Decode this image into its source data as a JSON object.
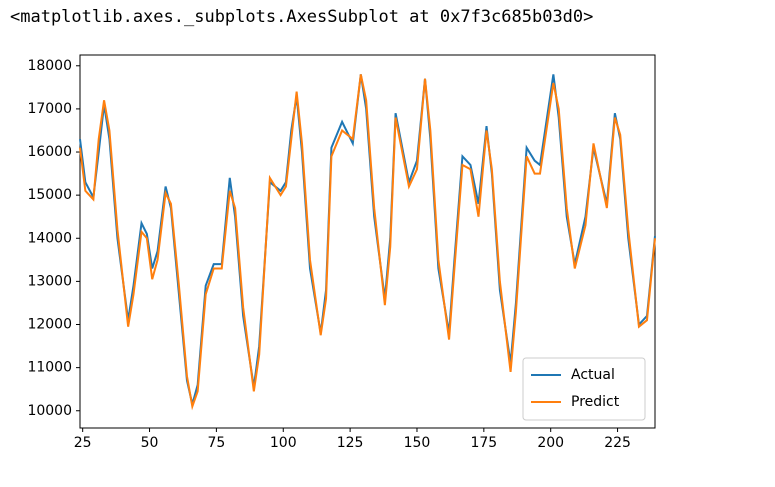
{
  "output_text": "<matplotlib.axes._subplots.AxesSubplot at 0x7f3c685b03d0>",
  "chart_data": {
    "type": "line",
    "x": [
      24,
      26,
      29,
      31,
      33,
      35,
      38,
      42,
      44,
      47,
      49,
      51,
      53,
      56,
      58,
      61,
      64,
      66,
      68,
      71,
      74,
      77,
      80,
      82,
      85,
      89,
      91,
      95,
      99,
      101,
      103,
      105,
      107,
      110,
      114,
      116,
      118,
      122,
      126,
      129,
      131,
      134,
      138,
      140,
      142,
      147,
      150,
      153,
      155,
      158,
      162,
      164,
      167,
      170,
      173,
      176,
      178,
      181,
      185,
      187,
      191,
      194,
      196,
      201,
      203,
      206,
      209,
      213,
      216,
      221,
      224,
      226,
      229,
      233,
      236,
      239
    ],
    "series": [
      {
        "name": "Actual",
        "color": "#1f77b4",
        "values": [
          16300,
          15300,
          14950,
          16000,
          17100,
          16300,
          14000,
          12100,
          12900,
          14350,
          14100,
          13300,
          13700,
          15200,
          14700,
          12700,
          10700,
          10150,
          10600,
          12900,
          13400,
          13400,
          15400,
          14500,
          12200,
          10550,
          11500,
          15300,
          15100,
          15300,
          16500,
          17300,
          16000,
          13300,
          11800,
          12800,
          16100,
          16700,
          16200,
          17800,
          17000,
          14500,
          12600,
          14000,
          16900,
          15300,
          15800,
          17700,
          16300,
          13300,
          11800,
          13500,
          15900,
          15700,
          14800,
          16600,
          15500,
          12800,
          11100,
          12500,
          16100,
          15800,
          15700,
          17800,
          16800,
          14500,
          13400,
          14500,
          16100,
          14800,
          16900,
          16300,
          14000,
          12000,
          12200,
          14050
        ]
      },
      {
        "name": "Predict",
        "color": "#ff7f0e",
        "values": [
          16100,
          15100,
          14900,
          16300,
          17200,
          16500,
          14200,
          11950,
          12700,
          14150,
          14000,
          13050,
          13500,
          15050,
          14800,
          12900,
          10800,
          10100,
          10450,
          12700,
          13300,
          13300,
          15100,
          14700,
          12400,
          10450,
          11300,
          15400,
          15000,
          15200,
          16300,
          17400,
          16200,
          13500,
          11750,
          12600,
          15900,
          16500,
          16300,
          17800,
          17200,
          14700,
          12450,
          13800,
          16800,
          15200,
          15600,
          17700,
          16500,
          13500,
          11650,
          13300,
          15700,
          15600,
          14500,
          16500,
          15600,
          13000,
          10900,
          12300,
          15900,
          15500,
          15500,
          17600,
          17000,
          14700,
          13300,
          14300,
          16200,
          14700,
          16800,
          16400,
          14200,
          11950,
          12100,
          14000
        ]
      }
    ],
    "xlim": [
      24,
      239
    ],
    "xticks": [
      25,
      50,
      75,
      100,
      125,
      150,
      175,
      200,
      225
    ],
    "ylim": [
      9600,
      18250
    ],
    "yticks": [
      10000,
      11000,
      12000,
      13000,
      14000,
      15000,
      16000,
      17000,
      18000
    ],
    "legend": "lower right"
  }
}
